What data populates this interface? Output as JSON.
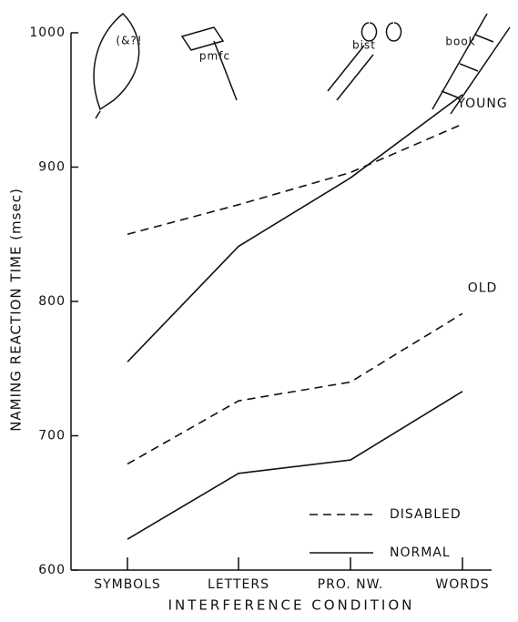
{
  "chart_data": {
    "type": "line",
    "ylabel": "NAMING REACTION TIME (msec)",
    "xlabel": "INTERFERENCE CONDITION",
    "categories": [
      "SYMBOLS",
      "LETTERS",
      "PRO. NW.",
      "WORDS"
    ],
    "ylim": [
      600,
      1000
    ],
    "yticks": [
      600,
      700,
      800,
      900,
      1000
    ],
    "color": "#111111",
    "legend": [
      {
        "name": "DISABLED",
        "dashed": true
      },
      {
        "name": "NORMAL",
        "dashed": false
      }
    ],
    "groups": [
      {
        "label": "YOUNG",
        "series": [
          {
            "legend": 0,
            "values": [
              850,
              872,
              896,
              932
            ]
          },
          {
            "legend": 1,
            "values": [
              755,
              841,
              892,
              954
            ]
          }
        ]
      },
      {
        "label": "OLD",
        "series": [
          {
            "legend": 0,
            "values": [
              679,
              726,
              740,
              791
            ]
          },
          {
            "legend": 1,
            "values": [
              623,
              672,
              682,
              733
            ]
          }
        ]
      }
    ],
    "picture_labels": [
      "(&?!",
      "pmfc",
      "bist",
      "book"
    ]
  }
}
